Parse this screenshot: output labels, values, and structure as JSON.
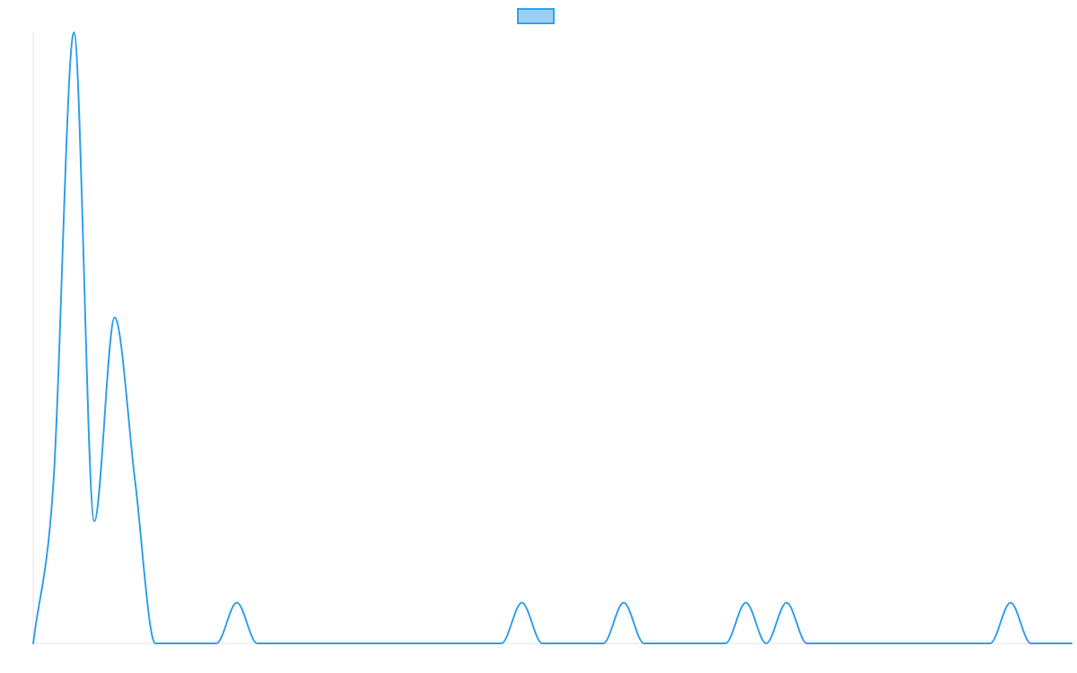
{
  "chart_data": {
    "type": "line",
    "title": "",
    "xlabel": "",
    "ylabel": "",
    "legend": "top-center",
    "grid": false,
    "smooth": true,
    "ylim": [
      0,
      15
    ],
    "x": [
      0,
      1,
      2,
      3,
      4,
      5,
      6,
      7,
      8,
      9,
      10,
      11,
      12,
      13,
      14,
      15,
      16,
      17,
      18,
      19,
      20,
      21,
      22,
      23,
      24,
      25,
      26,
      27,
      28,
      29,
      30,
      31,
      32,
      33,
      34,
      35,
      36,
      37,
      38,
      39,
      40,
      41,
      42,
      43,
      44,
      45,
      46,
      47,
      48,
      49,
      50,
      51
    ],
    "series": [
      {
        "name": "",
        "color": "#36a2eb",
        "fill": "rgba(54, 162, 235, 0.5)",
        "values": [
          0,
          4,
          15,
          3,
          8,
          4,
          0,
          0,
          0,
          0,
          1,
          0,
          0,
          0,
          0,
          0,
          0,
          0,
          0,
          0,
          0,
          0,
          0,
          0,
          1,
          0,
          0,
          0,
          0,
          1,
          0,
          0,
          0,
          0,
          0,
          1,
          0,
          1,
          0,
          0,
          0,
          0,
          0,
          0,
          0,
          0,
          0,
          0,
          1,
          0,
          0,
          0
        ]
      }
    ]
  }
}
